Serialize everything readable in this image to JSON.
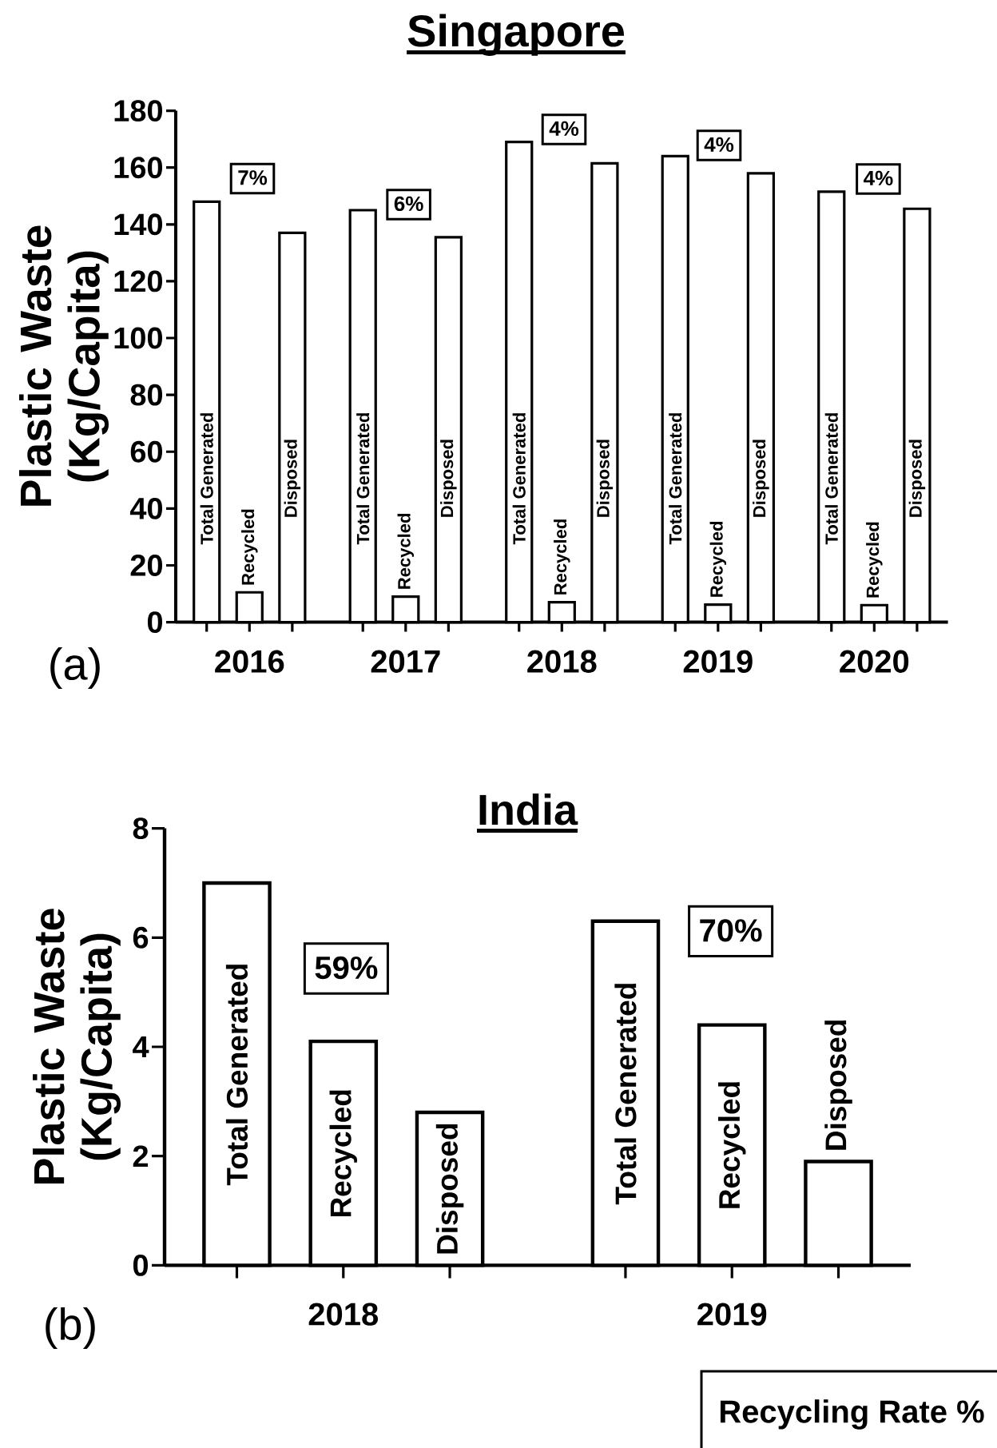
{
  "chart_data": [
    {
      "type": "bar",
      "title": "Singapore",
      "ylabel": "Plastic Waste (Kg/Capita)",
      "categories": [
        "2016",
        "2017",
        "2018",
        "2019",
        "2020"
      ],
      "series": [
        {
          "name": "Total Generated",
          "color": "#ffffff",
          "values": [
            148,
            145,
            169,
            164,
            151.5
          ]
        },
        {
          "name": "Recycled",
          "color": "#ffffff",
          "values": [
            10.5,
            9,
            7,
            6.2,
            6
          ]
        },
        {
          "name": "Disposed",
          "color": "#ffffff",
          "values": [
            137,
            135.5,
            161.5,
            158,
            145.5
          ]
        }
      ],
      "ylim": [
        0,
        180
      ],
      "yticks": [
        0,
        20,
        40,
        60,
        80,
        100,
        120,
        140,
        160,
        180
      ],
      "annotations": [
        "(a)",
        "7%",
        "6%",
        "4%",
        "4%",
        "4%"
      ]
    },
    {
      "type": "bar",
      "title": "India",
      "ylabel": "Plastic Waste (Kg/Capita)",
      "categories": [
        "2018",
        "2019"
      ],
      "series": [
        {
          "name": "Total Generated",
          "color": "#ffffff",
          "values": [
            7.0,
            6.3
          ]
        },
        {
          "name": "Recycled",
          "color": "#ffffff",
          "values": [
            4.1,
            4.4
          ]
        },
        {
          "name": "Disposed",
          "color": "#ffffff",
          "values": [
            2.8,
            1.9
          ]
        }
      ],
      "ylim": [
        0,
        8
      ],
      "yticks": [
        0,
        2,
        4,
        6,
        8
      ],
      "annotations": [
        "(b)",
        "59%",
        "70%",
        "Recycling Rate %"
      ]
    }
  ]
}
